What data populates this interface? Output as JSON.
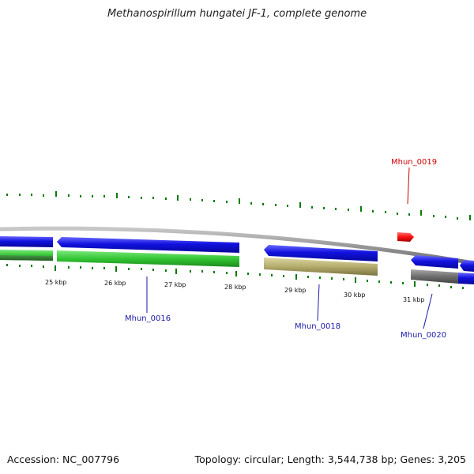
{
  "title": "Methanospirillum hungatei JF-1, complete genome",
  "footer": {
    "accession": "Accession: NC_007796",
    "summary": "Topology: circular; Length: 3,544,738 bp; Genes: 3,205"
  },
  "scale": {
    "ticks": [
      {
        "label": "25 kbp"
      },
      {
        "label": "26 kbp"
      },
      {
        "label": "27 kbp"
      },
      {
        "label": "28 kbp"
      },
      {
        "label": "29 kbp"
      },
      {
        "label": "30 kbp"
      },
      {
        "label": "31 kbp"
      }
    ]
  },
  "genes": [
    {
      "name": "Mhun_0016",
      "color": "#1a1aa8"
    },
    {
      "name": "Mhun_0018",
      "color": "#1a1aa8"
    },
    {
      "name": "Mhun_0019",
      "color": "#cc0000"
    },
    {
      "name": "Mhun_0020",
      "color": "#1a1aa8"
    }
  ],
  "colors": {
    "cds": "#1010e8",
    "gene": "#30c030",
    "pseudo": "#b8b070",
    "other": "#707070",
    "trna": "#ee1111",
    "tick": "#0a7a0a",
    "backbone": "#8a8a8a"
  }
}
